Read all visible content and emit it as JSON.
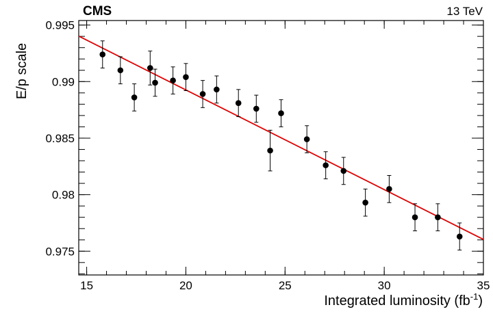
{
  "chart_data": {
    "type": "scatter",
    "experiment_label": "CMS",
    "energy_label": "13 TeV",
    "xlabel": "Integrated luminosity (fb",
    "xlabel_sup": "-1",
    "xlabel_close": ")",
    "ylabel": "E/p scale",
    "xlim": [
      14.6,
      35.0
    ],
    "ylim": [
      0.9729,
      0.9954
    ],
    "xticks": [
      15,
      20,
      25,
      30,
      35
    ],
    "yticks": [
      0.975,
      0.98,
      0.985,
      0.99,
      0.995
    ],
    "xtick_labels": [
      "15",
      "20",
      "25",
      "30",
      "35"
    ],
    "ytick_labels": [
      "0.975",
      "0.98",
      "0.985",
      "0.99",
      "0.995"
    ],
    "grid": false,
    "series": [
      {
        "kind": "points_with_errors",
        "color": "#000000",
        "points": [
          {
            "x": 15.8,
            "y": 0.9924,
            "err": 0.0012
          },
          {
            "x": 16.7,
            "y": 0.991,
            "err": 0.0012
          },
          {
            "x": 17.4,
            "y": 0.9886,
            "err": 0.0012
          },
          {
            "x": 18.2,
            "y": 0.9912,
            "err": 0.0015
          },
          {
            "x": 18.45,
            "y": 0.9899,
            "err": 0.0012
          },
          {
            "x": 19.35,
            "y": 0.9901,
            "err": 0.0012
          },
          {
            "x": 20.0,
            "y": 0.9904,
            "err": 0.0012
          },
          {
            "x": 20.85,
            "y": 0.9889,
            "err": 0.0012
          },
          {
            "x": 21.55,
            "y": 0.9893,
            "err": 0.0012
          },
          {
            "x": 22.65,
            "y": 0.9881,
            "err": 0.0012
          },
          {
            "x": 23.55,
            "y": 0.9876,
            "err": 0.0012
          },
          {
            "x": 24.25,
            "y": 0.9839,
            "err": 0.0018
          },
          {
            "x": 24.8,
            "y": 0.9872,
            "err": 0.0012
          },
          {
            "x": 26.1,
            "y": 0.9849,
            "err": 0.0012
          },
          {
            "x": 27.05,
            "y": 0.9826,
            "err": 0.0012
          },
          {
            "x": 27.95,
            "y": 0.9821,
            "err": 0.0012
          },
          {
            "x": 29.05,
            "y": 0.9793,
            "err": 0.0012
          },
          {
            "x": 30.25,
            "y": 0.9805,
            "err": 0.0012
          },
          {
            "x": 31.55,
            "y": 0.978,
            "err": 0.0012
          },
          {
            "x": 32.7,
            "y": 0.978,
            "err": 0.0012
          },
          {
            "x": 33.8,
            "y": 0.9763,
            "err": 0.0012
          }
        ]
      },
      {
        "kind": "fit_line",
        "color": "#e00000",
        "x": [
          14.6,
          35.0
        ],
        "y": [
          0.99402,
          0.97604
        ]
      }
    ]
  }
}
